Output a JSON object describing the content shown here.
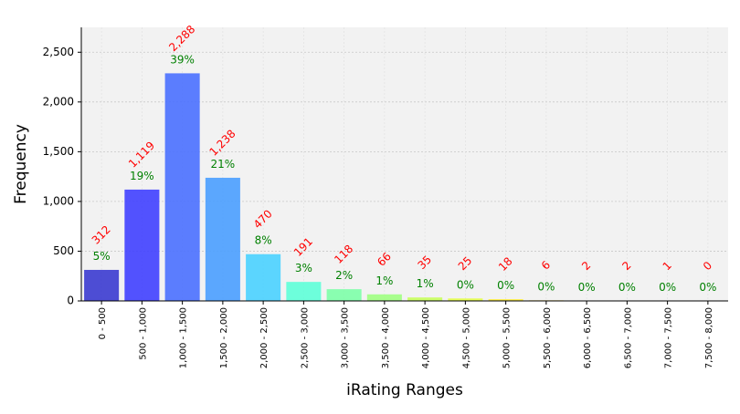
{
  "chart_data": {
    "type": "bar",
    "xlabel": "iRating Ranges",
    "ylabel": "Frequency",
    "ylim": [
      0,
      2750
    ],
    "yticks": [
      0,
      500,
      1000,
      1500,
      2000,
      2500
    ],
    "ytick_labels": [
      "0",
      "500",
      "1,000",
      "1,500",
      "2,000",
      "2,500"
    ],
    "grid": true,
    "categories": [
      "0 - 500",
      "500 - 1,000",
      "1,000 - 1,500",
      "1,500 - 2,000",
      "2,000 - 2,500",
      "2,500 - 3,000",
      "3,000 - 3,500",
      "3,500 - 4,000",
      "4,000 - 4,500",
      "4,500 - 5,000",
      "5,000 - 5,500",
      "5,500 - 6,000",
      "6,000 - 6,500",
      "6,500 - 7,000",
      "7,000 - 7,500",
      "7,500 - 8,000"
    ],
    "values": [
      312,
      1119,
      2288,
      1238,
      470,
      191,
      118,
      66,
      35,
      25,
      18,
      6,
      2,
      2,
      1,
      0
    ],
    "count_labels": [
      "312",
      "1,119",
      "2,288",
      "1,238",
      "470",
      "191",
      "118",
      "66",
      "35",
      "25",
      "18",
      "6",
      "2",
      "2",
      "1",
      "0"
    ],
    "percent_labels": [
      "5%",
      "19%",
      "39%",
      "21%",
      "8%",
      "3%",
      "2%",
      "1%",
      "1%",
      "0%",
      "0%",
      "0%",
      "0%",
      "0%",
      "0%",
      "0%"
    ],
    "bar_colors": [
      "#3b3bd0",
      "#4040ff",
      "#4a70ff",
      "#4a9fff",
      "#4ad2ff",
      "#5effd8",
      "#7dffa8",
      "#a0ff82",
      "#c8ff5c",
      "#e6ff48",
      "#fff040",
      "#ffd040",
      "#ffb040",
      "#ff9040",
      "#ff7040",
      "#ff5040"
    ],
    "colors": {
      "count_label": "#ff0000",
      "percent_label": "#008000",
      "plot_background": "#f2f2f2",
      "grid": "#c8c8c8"
    }
  }
}
